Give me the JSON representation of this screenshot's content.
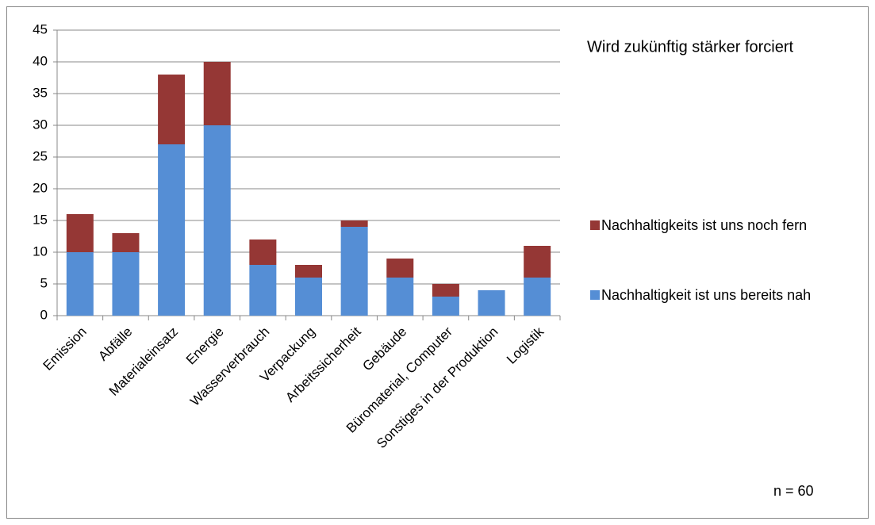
{
  "chart_data": {
    "type": "stacked_bar",
    "title": "Wird zukünftig stärker forciert",
    "annotation": "n = 60",
    "categories": [
      "Emission",
      "Abfälle",
      "Materialeinsatz",
      "Energie",
      "Wasserverbrauch",
      "Verpackung",
      "Arbeitssicherheit",
      "Gebäude",
      "Büromaterial, Computer",
      "Sonstiges in der Produktion",
      "Logistik"
    ],
    "series": [
      {
        "name": "Nachhaltigkeit ist uns bereits nah",
        "color": "#558ed5",
        "values": [
          10,
          10,
          27,
          30,
          8,
          6,
          14,
          6,
          3,
          4,
          6
        ]
      },
      {
        "name": "Nachhaltigkeits ist uns noch fern",
        "color": "#953735",
        "values": [
          6,
          3,
          11,
          10,
          4,
          2,
          1,
          3,
          2,
          0,
          5
        ]
      }
    ],
    "ylim": [
      0,
      45
    ],
    "yticks": [
      0,
      5,
      10,
      15,
      20,
      25,
      30,
      35,
      40,
      45
    ],
    "grid": true,
    "legend": "right"
  }
}
